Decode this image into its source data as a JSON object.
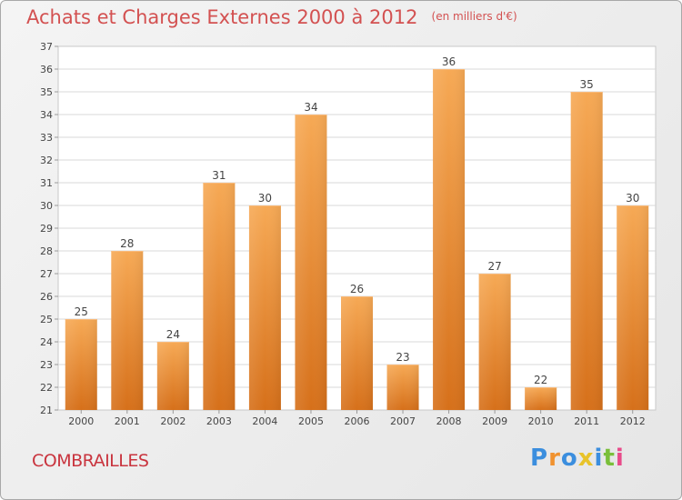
{
  "chart_data": {
    "type": "bar",
    "title": "Achats et Charges Externes 2000 à 2012",
    "unit_note": "(en milliers d'€)",
    "categories": [
      "2000",
      "2001",
      "2002",
      "2003",
      "2004",
      "2005",
      "2006",
      "2007",
      "2008",
      "2009",
      "2010",
      "2011",
      "2012"
    ],
    "values": [
      25,
      28,
      24,
      31,
      30,
      34,
      26,
      23,
      36,
      27,
      22,
      35,
      30
    ],
    "ylim": [
      21,
      37
    ],
    "y_ticks": [
      21,
      22,
      23,
      24,
      25,
      26,
      27,
      28,
      29,
      30,
      31,
      32,
      33,
      34,
      35,
      36,
      37
    ],
    "grid": true,
    "bar_color": "#f0922f"
  },
  "footer": {
    "commune": "COMBRAILLES",
    "brand": "Proxiti"
  }
}
